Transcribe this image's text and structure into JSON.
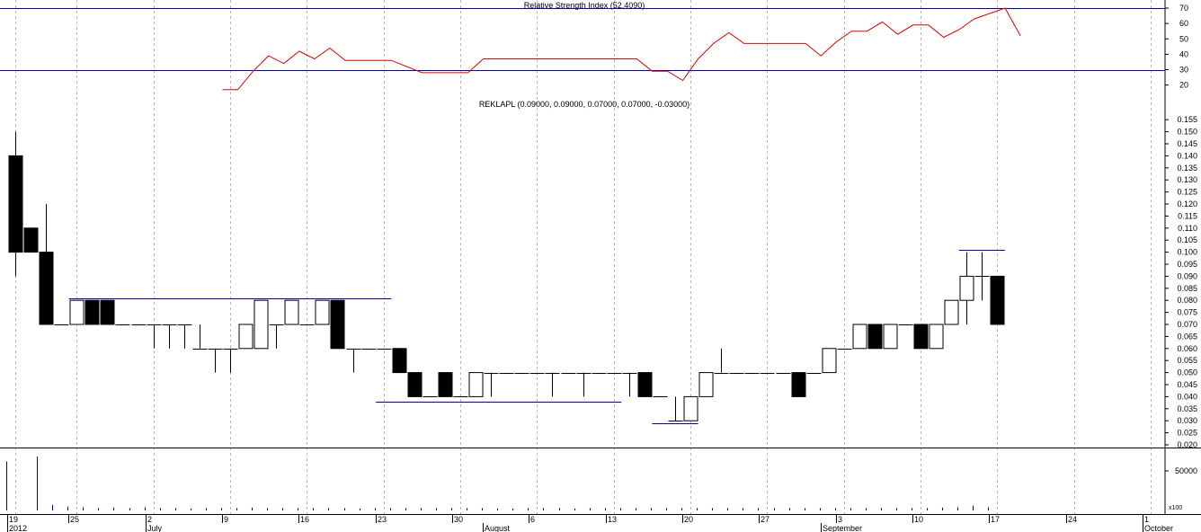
{
  "chart_data": [
    {
      "type": "line",
      "title": "Relative Strength Index (52.4090)",
      "yticks": [
        20,
        30,
        40,
        50,
        60,
        70
      ],
      "ylim": [
        10,
        75
      ],
      "reference_lines": [
        30,
        70
      ],
      "colors": {
        "line": "#e00000",
        "reference": "#0000aa"
      },
      "series": [
        {
          "values": [
            {
              "bar": 13.5,
              "v": 17
            },
            {
              "bar": 14.5,
              "v": 17
            },
            {
              "bar": 15.5,
              "v": 29
            },
            {
              "bar": 16.5,
              "v": 39
            },
            {
              "bar": 17.5,
              "v": 34
            },
            {
              "bar": 18.5,
              "v": 42
            },
            {
              "bar": 19.5,
              "v": 37
            },
            {
              "bar": 20.5,
              "v": 44
            },
            {
              "bar": 21.5,
              "v": 36
            },
            {
              "bar": 24.5,
              "v": 36
            },
            {
              "bar": 26.5,
              "v": 28
            },
            {
              "bar": 29.5,
              "v": 28
            },
            {
              "bar": 30.5,
              "v": 37
            },
            {
              "bar": 40.5,
              "v": 37
            },
            {
              "bar": 41.5,
              "v": 29
            },
            {
              "bar": 42.5,
              "v": 29
            },
            {
              "bar": 43.5,
              "v": 23
            },
            {
              "bar": 44.5,
              "v": 37
            },
            {
              "bar": 45.5,
              "v": 47
            },
            {
              "bar": 46.5,
              "v": 54
            },
            {
              "bar": 47.5,
              "v": 47
            },
            {
              "bar": 51.5,
              "v": 47
            },
            {
              "bar": 52.5,
              "v": 39
            },
            {
              "bar": 53.5,
              "v": 48
            },
            {
              "bar": 54.5,
              "v": 55
            },
            {
              "bar": 55.5,
              "v": 55
            },
            {
              "bar": 56.5,
              "v": 61
            },
            {
              "bar": 57.5,
              "v": 53
            },
            {
              "bar": 58.5,
              "v": 59
            },
            {
              "bar": 59.5,
              "v": 59
            },
            {
              "bar": 60.5,
              "v": 51
            },
            {
              "bar": 61.5,
              "v": 56
            },
            {
              "bar": 62.5,
              "v": 63
            },
            {
              "bar": 64.5,
              "v": 70
            },
            {
              "bar": 65.5,
              "v": 52
            }
          ]
        }
      ]
    },
    {
      "type": "candlestick",
      "title": "REKLAPL (0.09000, 0.09000, 0.07000, 0.07000, -0.03000)",
      "ylim": [
        0.017,
        0.16
      ],
      "yticks": [
        0.02,
        0.025,
        0.03,
        0.035,
        0.04,
        0.045,
        0.05,
        0.055,
        0.06,
        0.065,
        0.07,
        0.075,
        0.08,
        0.085,
        0.09,
        0.095,
        0.1,
        0.105,
        0.11,
        0.115,
        0.12,
        0.125,
        0.13,
        0.135,
        0.14,
        0.145,
        0.15,
        0.155
      ],
      "colors": {
        "up": "#ffffff",
        "down": "#000000",
        "trendline": "#0000aa"
      },
      "candles": [
        {
          "i": 0,
          "o": 0.14,
          "h": 0.15,
          "l": 0.09,
          "c": 0.1
        },
        {
          "i": 1,
          "o": 0.11,
          "h": 0.11,
          "l": 0.1,
          "c": 0.1
        },
        {
          "i": 2,
          "o": 0.1,
          "h": 0.12,
          "l": 0.07,
          "c": 0.07
        },
        {
          "i": 3,
          "o": 0.07,
          "h": 0.07,
          "l": 0.07,
          "c": 0.07
        },
        {
          "i": 4,
          "o": 0.07,
          "h": 0.08,
          "l": 0.07,
          "c": 0.08
        },
        {
          "i": 5,
          "o": 0.08,
          "h": 0.08,
          "l": 0.07,
          "c": 0.07
        },
        {
          "i": 6,
          "o": 0.08,
          "h": 0.08,
          "l": 0.07,
          "c": 0.07
        },
        {
          "i": 7,
          "o": 0.07,
          "h": 0.07,
          "l": 0.07,
          "c": 0.07
        },
        {
          "i": 8,
          "o": 0.07,
          "h": 0.07,
          "l": 0.07,
          "c": 0.07
        },
        {
          "i": 9,
          "o": 0.07,
          "h": 0.07,
          "l": 0.06,
          "c": 0.07
        },
        {
          "i": 10,
          "o": 0.07,
          "h": 0.07,
          "l": 0.06,
          "c": 0.07
        },
        {
          "i": 11,
          "o": 0.07,
          "h": 0.07,
          "l": 0.06,
          "c": 0.07
        },
        {
          "i": 12,
          "o": 0.06,
          "h": 0.07,
          "l": 0.06,
          "c": 0.06
        },
        {
          "i": 13,
          "o": 0.06,
          "h": 0.06,
          "l": 0.05,
          "c": 0.06
        },
        {
          "i": 14,
          "o": 0.06,
          "h": 0.06,
          "l": 0.05,
          "c": 0.06
        },
        {
          "i": 15,
          "o": 0.06,
          "h": 0.07,
          "l": 0.06,
          "c": 0.07
        },
        {
          "i": 16,
          "o": 0.06,
          "h": 0.08,
          "l": 0.06,
          "c": 0.08
        },
        {
          "i": 17,
          "o": 0.07,
          "h": 0.07,
          "l": 0.06,
          "c": 0.07
        },
        {
          "i": 18,
          "o": 0.07,
          "h": 0.08,
          "l": 0.07,
          "c": 0.08
        },
        {
          "i": 19,
          "o": 0.07,
          "h": 0.07,
          "l": 0.07,
          "c": 0.07
        },
        {
          "i": 20,
          "o": 0.07,
          "h": 0.08,
          "l": 0.07,
          "c": 0.08
        },
        {
          "i": 21,
          "o": 0.08,
          "h": 0.08,
          "l": 0.06,
          "c": 0.06
        },
        {
          "i": 22,
          "o": 0.06,
          "h": 0.06,
          "l": 0.05,
          "c": 0.06
        },
        {
          "i": 23,
          "o": 0.06,
          "h": 0.06,
          "l": 0.06,
          "c": 0.06
        },
        {
          "i": 24,
          "o": 0.06,
          "h": 0.06,
          "l": 0.06,
          "c": 0.06
        },
        {
          "i": 25,
          "o": 0.06,
          "h": 0.06,
          "l": 0.05,
          "c": 0.05
        },
        {
          "i": 26,
          "o": 0.05,
          "h": 0.05,
          "l": 0.04,
          "c": 0.04
        },
        {
          "i": 27,
          "o": 0.04,
          "h": 0.04,
          "l": 0.04,
          "c": 0.04
        },
        {
          "i": 28,
          "o": 0.05,
          "h": 0.05,
          "l": 0.04,
          "c": 0.04
        },
        {
          "i": 29,
          "o": 0.04,
          "h": 0.04,
          "l": 0.04,
          "c": 0.04
        },
        {
          "i": 30,
          "o": 0.04,
          "h": 0.05,
          "l": 0.04,
          "c": 0.05
        },
        {
          "i": 31,
          "o": 0.05,
          "h": 0.05,
          "l": 0.04,
          "c": 0.05
        },
        {
          "i": 32,
          "o": 0.05,
          "h": 0.05,
          "l": 0.05,
          "c": 0.05
        },
        {
          "i": 33,
          "o": 0.05,
          "h": 0.05,
          "l": 0.05,
          "c": 0.05
        },
        {
          "i": 34,
          "o": 0.05,
          "h": 0.05,
          "l": 0.05,
          "c": 0.05
        },
        {
          "i": 35,
          "o": 0.05,
          "h": 0.05,
          "l": 0.04,
          "c": 0.05
        },
        {
          "i": 36,
          "o": 0.05,
          "h": 0.05,
          "l": 0.05,
          "c": 0.05
        },
        {
          "i": 37,
          "o": 0.05,
          "h": 0.05,
          "l": 0.04,
          "c": 0.05
        },
        {
          "i": 38,
          "o": 0.05,
          "h": 0.05,
          "l": 0.05,
          "c": 0.05
        },
        {
          "i": 39,
          "o": 0.05,
          "h": 0.05,
          "l": 0.05,
          "c": 0.05
        },
        {
          "i": 40,
          "o": 0.05,
          "h": 0.05,
          "l": 0.04,
          "c": 0.05
        },
        {
          "i": 41,
          "o": 0.05,
          "h": 0.05,
          "l": 0.04,
          "c": 0.04
        },
        {
          "i": 42,
          "o": 0.04,
          "h": 0.04,
          "l": 0.04,
          "c": 0.04
        },
        {
          "i": 43,
          "o": 0.03,
          "h": 0.04,
          "l": 0.03,
          "c": 0.03
        },
        {
          "i": 44,
          "o": 0.03,
          "h": 0.04,
          "l": 0.03,
          "c": 0.04
        },
        {
          "i": 45,
          "o": 0.04,
          "h": 0.05,
          "l": 0.04,
          "c": 0.05
        },
        {
          "i": 46,
          "o": 0.05,
          "h": 0.06,
          "l": 0.05,
          "c": 0.05
        },
        {
          "i": 47,
          "o": 0.05,
          "h": 0.05,
          "l": 0.05,
          "c": 0.05
        },
        {
          "i": 48,
          "o": 0.05,
          "h": 0.05,
          "l": 0.05,
          "c": 0.05
        },
        {
          "i": 49,
          "o": 0.05,
          "h": 0.05,
          "l": 0.05,
          "c": 0.05
        },
        {
          "i": 50,
          "o": 0.05,
          "h": 0.05,
          "l": 0.05,
          "c": 0.05
        },
        {
          "i": 51,
          "o": 0.05,
          "h": 0.05,
          "l": 0.04,
          "c": 0.04
        },
        {
          "i": 52,
          "o": 0.05,
          "h": 0.05,
          "l": 0.05,
          "c": 0.05
        },
        {
          "i": 53,
          "o": 0.05,
          "h": 0.06,
          "l": 0.05,
          "c": 0.06
        },
        {
          "i": 54,
          "o": 0.06,
          "h": 0.06,
          "l": 0.06,
          "c": 0.06
        },
        {
          "i": 55,
          "o": 0.06,
          "h": 0.07,
          "l": 0.06,
          "c": 0.07
        },
        {
          "i": 56,
          "o": 0.07,
          "h": 0.07,
          "l": 0.06,
          "c": 0.06
        },
        {
          "i": 57,
          "o": 0.06,
          "h": 0.07,
          "l": 0.06,
          "c": 0.07
        },
        {
          "i": 58,
          "o": 0.07,
          "h": 0.07,
          "l": 0.07,
          "c": 0.07
        },
        {
          "i": 59,
          "o": 0.07,
          "h": 0.07,
          "l": 0.06,
          "c": 0.06
        },
        {
          "i": 60,
          "o": 0.06,
          "h": 0.07,
          "l": 0.06,
          "c": 0.07
        },
        {
          "i": 61,
          "o": 0.07,
          "h": 0.08,
          "l": 0.07,
          "c": 0.08
        },
        {
          "i": 62,
          "o": 0.08,
          "h": 0.1,
          "l": 0.07,
          "c": 0.09
        },
        {
          "i": 63,
          "o": 0.09,
          "h": 0.1,
          "l": 0.08,
          "c": 0.09
        },
        {
          "i": 64,
          "o": 0.09,
          "h": 0.09,
          "l": 0.07,
          "c": 0.07
        }
      ],
      "trendlines": [
        {
          "from_bar": 3.5,
          "to_bar": 24.5,
          "value": 0.081
        },
        {
          "from_bar": 23.5,
          "to_bar": 39.5,
          "value": 0.038
        },
        {
          "from_bar": 41.5,
          "to_bar": 44.5,
          "value": 0.029
        },
        {
          "from_bar": 61.5,
          "to_bar": 64.5,
          "value": 0.101
        }
      ]
    },
    {
      "type": "bar",
      "name": "volume",
      "yticks": [
        {
          "value": 50000,
          "label": "50000"
        }
      ],
      "ylim": [
        0,
        80000
      ],
      "unit_label": "x100",
      "colors": {
        "bar": "#0000aa"
      },
      "values": [
        {
          "bar": 0,
          "v": 62000
        },
        {
          "bar": 2,
          "v": 68000
        },
        {
          "bar": 3,
          "v": 7000
        },
        {
          "bar": 4,
          "v": 5000
        },
        {
          "bar": 5,
          "v": 4000
        },
        {
          "bar": 6,
          "v": 3000
        },
        {
          "bar": 7,
          "v": 3500
        },
        {
          "bar": 8,
          "v": 3000
        },
        {
          "bar": 9,
          "v": 4000
        },
        {
          "bar": 10,
          "v": 3000
        },
        {
          "bar": 11,
          "v": 3000
        },
        {
          "bar": 12,
          "v": 2500
        },
        {
          "bar": 13,
          "v": 3000
        },
        {
          "bar": 14,
          "v": 3000
        },
        {
          "bar": 15,
          "v": 3000
        },
        {
          "bar": 16,
          "v": 3500
        },
        {
          "bar": 17,
          "v": 3000
        },
        {
          "bar": 18,
          "v": 3000
        },
        {
          "bar": 19,
          "v": 3000
        },
        {
          "bar": 20,
          "v": 3000
        },
        {
          "bar": 21,
          "v": 3000
        },
        {
          "bar": 22,
          "v": 3000
        },
        {
          "bar": 23,
          "v": 2500
        },
        {
          "bar": 24,
          "v": 3000
        },
        {
          "bar": 25,
          "v": 3000
        },
        {
          "bar": 26,
          "v": 3000
        },
        {
          "bar": 27,
          "v": 3000
        },
        {
          "bar": 28,
          "v": 3000
        },
        {
          "bar": 29,
          "v": 3000
        },
        {
          "bar": 30,
          "v": 3000
        },
        {
          "bar": 31,
          "v": 3000
        },
        {
          "bar": 32,
          "v": 2500
        },
        {
          "bar": 33,
          "v": 2500
        },
        {
          "bar": 34,
          "v": 3000
        },
        {
          "bar": 35,
          "v": 3000
        },
        {
          "bar": 36,
          "v": 3000
        },
        {
          "bar": 37,
          "v": 2500
        },
        {
          "bar": 38,
          "v": 3000
        },
        {
          "bar": 39,
          "v": 3000
        },
        {
          "bar": 40,
          "v": 3000
        },
        {
          "bar": 41,
          "v": 3000
        },
        {
          "bar": 42,
          "v": 3000
        },
        {
          "bar": 43,
          "v": 3000
        },
        {
          "bar": 44,
          "v": 3000
        },
        {
          "bar": 45,
          "v": 3000
        },
        {
          "bar": 46,
          "v": 3000
        },
        {
          "bar": 47,
          "v": 3000
        },
        {
          "bar": 48,
          "v": 3000
        },
        {
          "bar": 49,
          "v": 3000
        },
        {
          "bar": 50,
          "v": 3000
        },
        {
          "bar": 51,
          "v": 3000
        },
        {
          "bar": 52,
          "v": 3000
        },
        {
          "bar": 53,
          "v": 3000
        },
        {
          "bar": 54,
          "v": 3000
        },
        {
          "bar": 55,
          "v": 3000
        },
        {
          "bar": 56,
          "v": 3000
        },
        {
          "bar": 57,
          "v": 3000
        },
        {
          "bar": 58,
          "v": 3000
        },
        {
          "bar": 59,
          "v": 3000
        },
        {
          "bar": 60,
          "v": 3000
        },
        {
          "bar": 61,
          "v": 3500
        },
        {
          "bar": 62,
          "v": 4000
        },
        {
          "bar": 63,
          "v": 6000
        },
        {
          "bar": 64,
          "v": 4000
        }
      ]
    }
  ],
  "x_axis": {
    "day_ticks": [
      {
        "bar": 0,
        "label": "19"
      },
      {
        "bar": 4,
        "label": "25"
      },
      {
        "bar": 9,
        "label": "2"
      },
      {
        "bar": 14,
        "label": "9"
      },
      {
        "bar": 19,
        "label": "16"
      },
      {
        "bar": 24,
        "label": "23"
      },
      {
        "bar": 29,
        "label": "30"
      },
      {
        "bar": 34,
        "label": "6"
      },
      {
        "bar": 39,
        "label": "13"
      },
      {
        "bar": 44,
        "label": "20"
      },
      {
        "bar": 49,
        "label": "27"
      },
      {
        "bar": 54,
        "label": "3"
      },
      {
        "bar": 59,
        "label": "10"
      },
      {
        "bar": 64,
        "label": "17"
      },
      {
        "bar": 69,
        "label": "24"
      },
      {
        "bar": 74,
        "label": "1"
      }
    ],
    "month_ticks": [
      {
        "bar": 0,
        "label": "2012"
      },
      {
        "bar": 9,
        "label": "July"
      },
      {
        "bar": 31,
        "label": "August"
      },
      {
        "bar": 53,
        "label": "September"
      },
      {
        "bar": 74,
        "label": "October"
      }
    ]
  }
}
